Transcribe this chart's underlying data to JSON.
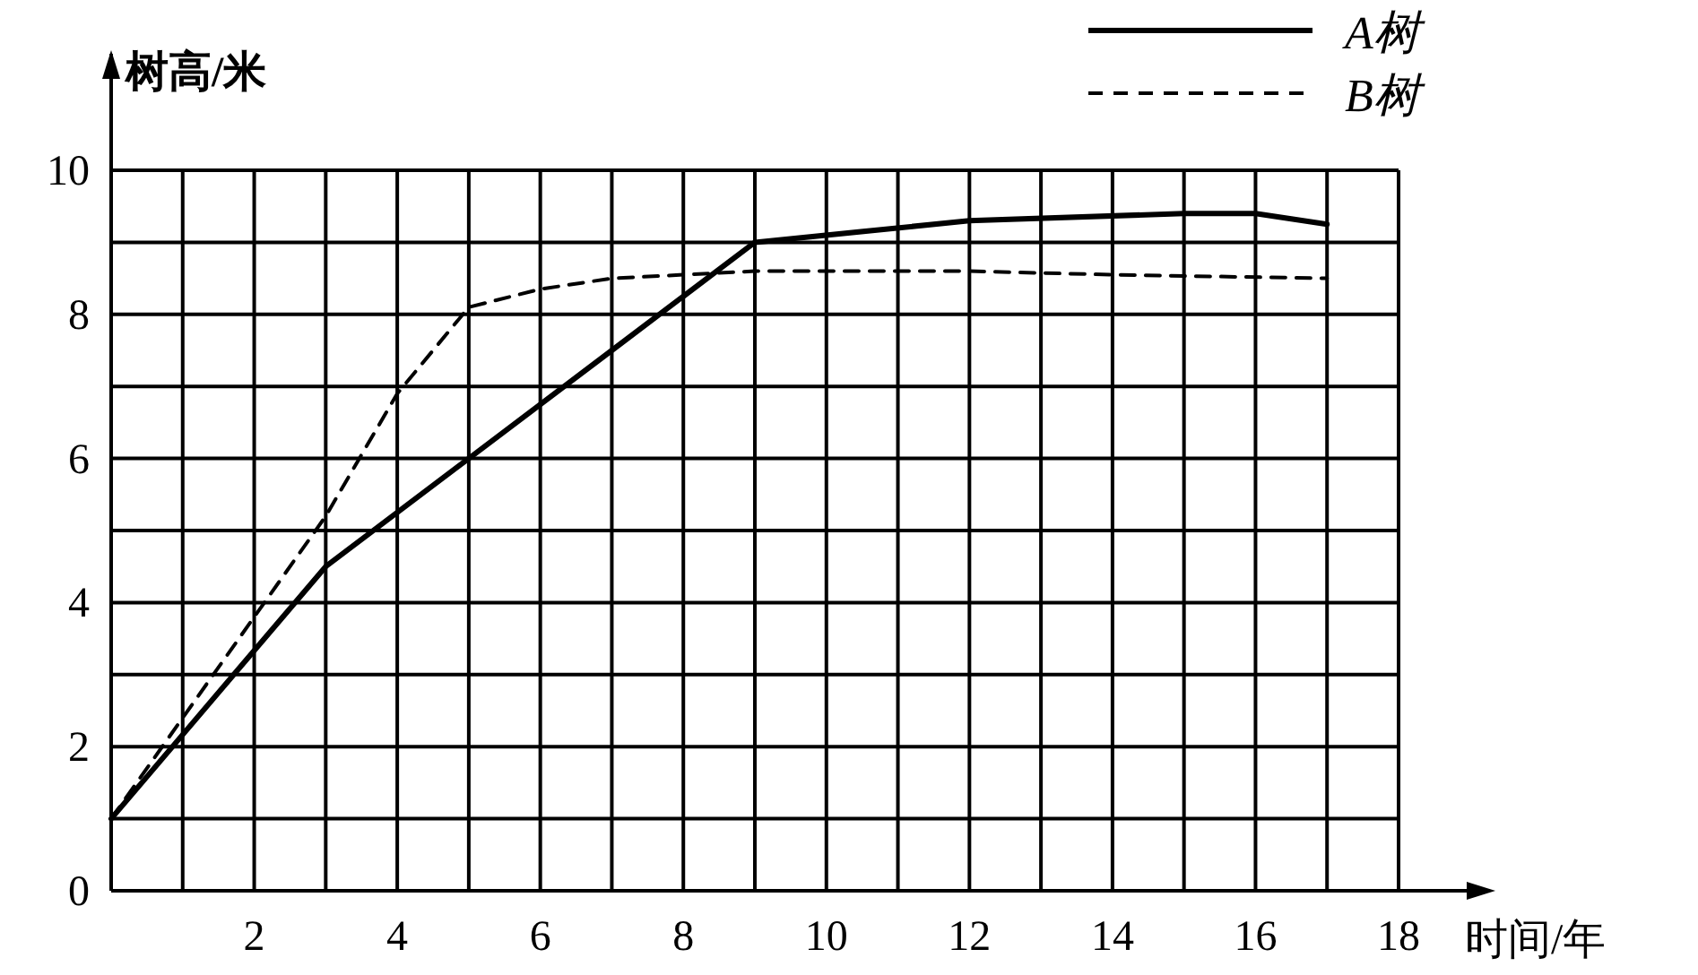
{
  "chart_data": {
    "type": "line",
    "xlabel": "时间/年",
    "ylabel": "树高/米",
    "xlim": [
      0,
      18
    ],
    "ylim": [
      0,
      10
    ],
    "xticks": [
      {
        "value": 1,
        "label": null
      },
      2,
      {
        "value": 3,
        "label": null
      },
      4,
      {
        "value": 5,
        "label": null
      },
      6,
      {
        "value": 7,
        "label": null
      },
      8,
      {
        "value": 9,
        "label": null
      },
      10,
      {
        "value": 11,
        "label": null
      },
      12,
      {
        "value": 13,
        "label": null
      },
      14,
      {
        "value": 15,
        "label": null
      },
      16,
      {
        "value": 17,
        "label": null
      },
      18
    ],
    "yticks": [
      0,
      {
        "value": 1,
        "label": null
      },
      2,
      {
        "value": 3,
        "label": null
      },
      4,
      {
        "value": 5,
        "label": null
      },
      6,
      {
        "value": 7,
        "label": null
      },
      8,
      {
        "value": 9,
        "label": null
      },
      10
    ],
    "grid": true,
    "legend": "top right",
    "series": [
      {
        "name": "A树",
        "color": "#000000",
        "line_style": "solid",
        "x": [
          0,
          3,
          5,
          7,
          9,
          12,
          15,
          16,
          17
        ],
        "values": [
          1,
          4.5,
          6,
          7.5,
          9,
          9.3,
          9.4,
          9.4,
          9.25
        ]
      },
      {
        "name": "B树",
        "color": "#000000",
        "line_style": "dashed",
        "x": [
          0,
          2,
          3,
          4,
          5,
          6,
          7,
          9,
          12,
          14,
          17
        ],
        "values": [
          1,
          3.8,
          5.2,
          6.9,
          8.1,
          8.35,
          8.5,
          8.6,
          8.6,
          8.55,
          8.5
        ]
      }
    ]
  }
}
